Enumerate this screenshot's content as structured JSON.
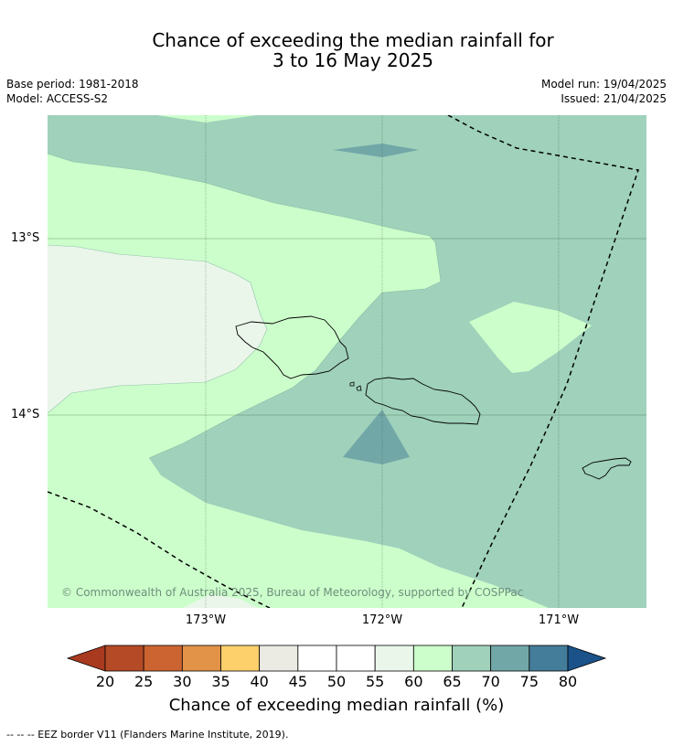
{
  "title_line1": "Chance of exceeding the median rainfall for",
  "title_line2": "3 to 16 May 2025",
  "base_period": "Base period: 1981-2018",
  "model": "Model: ACCESS-S2",
  "model_run": "Model run: 19/04/2025",
  "issued": "Issued: 21/04/2025",
  "lat_ticks": [
    "13°S",
    "14°S"
  ],
  "lon_ticks": [
    "173°W",
    "172°W",
    "171°W"
  ],
  "copyright": "© Commonwealth of Australia 2025, Bureau of Meteorology, supported by COSPPac",
  "legend": {
    "title": "Chance of exceeding median rainfall (%)",
    "labels": [
      "20",
      "25",
      "30",
      "35",
      "40",
      "45",
      "50",
      "55",
      "60",
      "65",
      "70",
      "75",
      "80"
    ],
    "colors": [
      "#a9391f",
      "#b54a26",
      "#cc6431",
      "#e29348",
      "#fdd06c",
      "#ebebe4",
      "#ffffff",
      "#ffffff",
      "#eaf6ea",
      "#ccfecb",
      "#9fd1bb",
      "#72a7a8",
      "#447d99",
      "#1a5289"
    ]
  },
  "footnote": "--  --  -- EEZ border V11 (Flanders Marine Institute, 2019).",
  "map_colors": {
    "band_40_60": "#ccfecb",
    "band_55_60": "#eaf6ea",
    "band_65_70": "#9fd1bb",
    "band_70_75": "#72a7a8",
    "grid": "#3c5a3c",
    "coast": "#000000"
  }
}
